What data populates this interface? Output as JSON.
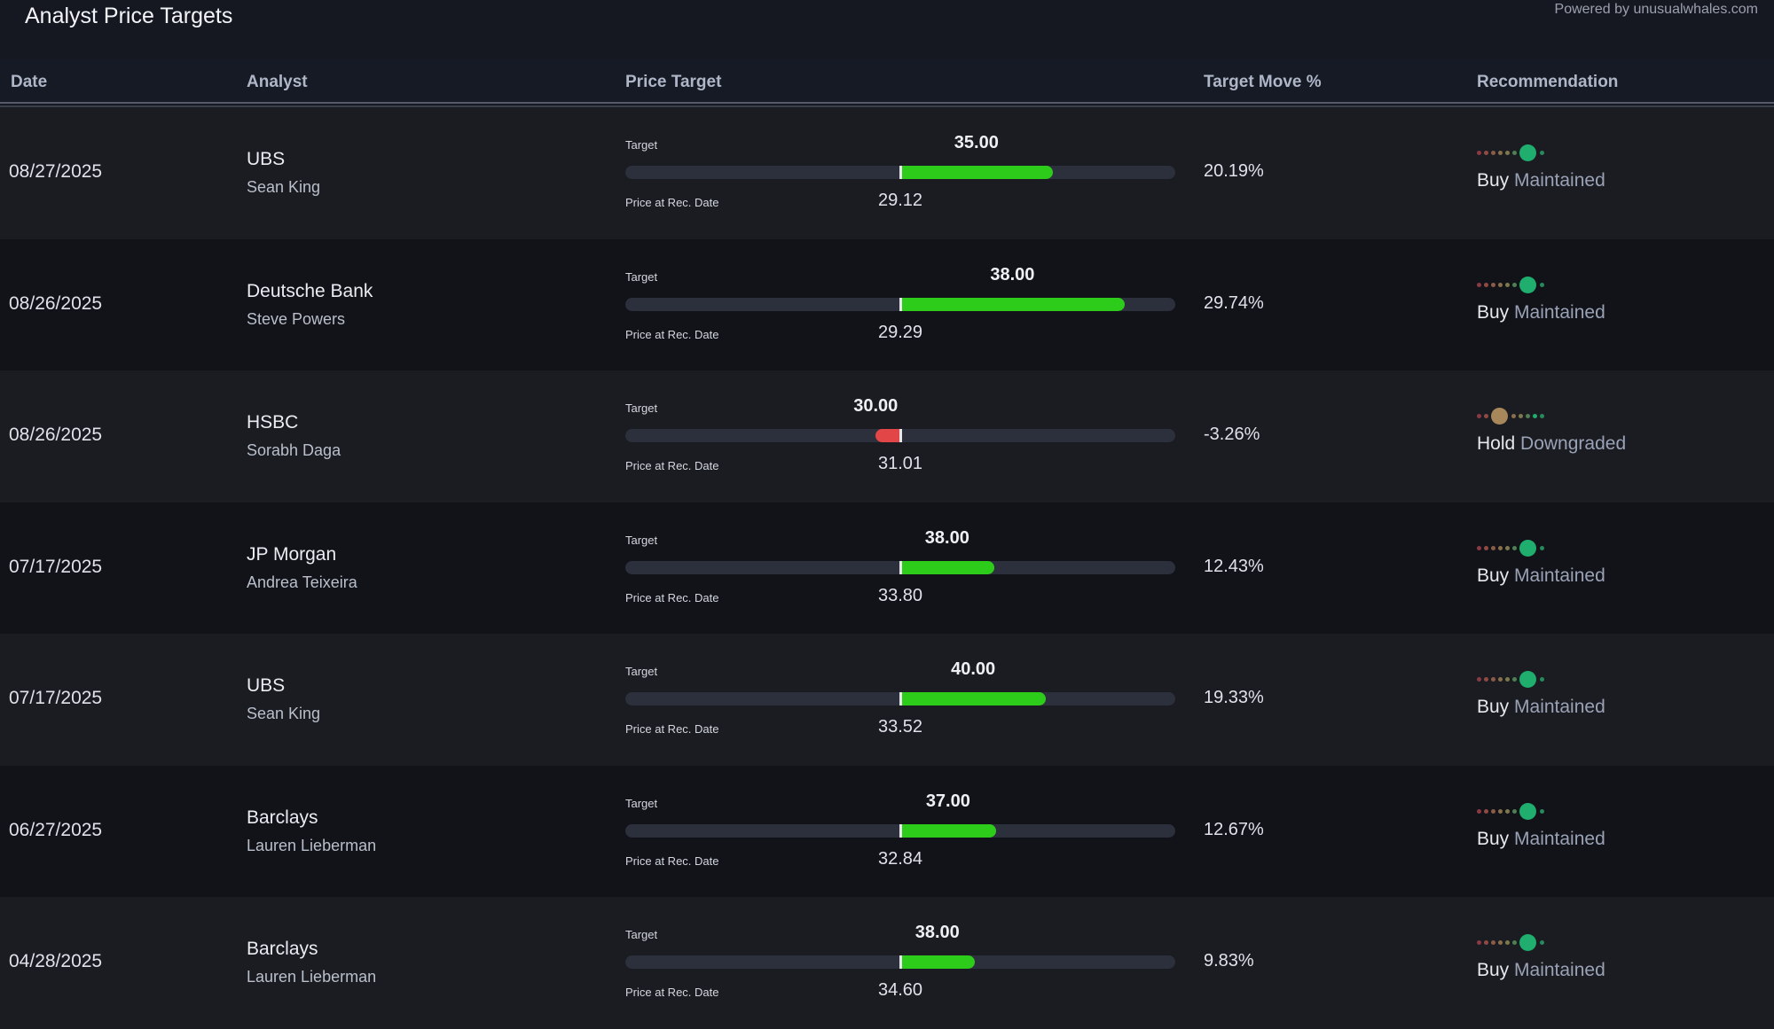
{
  "header": {
    "title": "Analyst Price Targets",
    "powered_by": "Powered by unusualwhales.com"
  },
  "columns": {
    "date": "Date",
    "analyst": "Analyst",
    "price_target": "Price Target",
    "target_move": "Target Move %",
    "recommendation": "Recommendation"
  },
  "labels": {
    "target": "Target",
    "price_at_rec": "Price at Rec. Date"
  },
  "colors": {
    "positive_fill": "#2ecc1a",
    "negative_fill": "#e24646",
    "buy_dot": "#1fae6e",
    "hold_dot": "#a8875a"
  },
  "rows": [
    {
      "date": "08/27/2025",
      "firm": "UBS",
      "analyst": "Sean King",
      "target": "35.00",
      "price_at_rec": "29.12",
      "target_move": "20.19%",
      "move_pct": 20.19,
      "recommendation": "Buy",
      "action": "Maintained",
      "rating_level": 6
    },
    {
      "date": "08/26/2025",
      "firm": "Deutsche Bank",
      "analyst": "Steve Powers",
      "target": "38.00",
      "price_at_rec": "29.29",
      "target_move": "29.74%",
      "move_pct": 29.74,
      "recommendation": "Buy",
      "action": "Maintained",
      "rating_level": 6
    },
    {
      "date": "08/26/2025",
      "firm": "HSBC",
      "analyst": "Sorabh Daga",
      "target": "30.00",
      "price_at_rec": "31.01",
      "target_move": "-3.26%",
      "move_pct": -3.26,
      "recommendation": "Hold",
      "action": "Downgraded",
      "rating_level": 2
    },
    {
      "date": "07/17/2025",
      "firm": "JP Morgan",
      "analyst": "Andrea Teixeira",
      "target": "38.00",
      "price_at_rec": "33.80",
      "target_move": "12.43%",
      "move_pct": 12.43,
      "recommendation": "Buy",
      "action": "Maintained",
      "rating_level": 6
    },
    {
      "date": "07/17/2025",
      "firm": "UBS",
      "analyst": "Sean King",
      "target": "40.00",
      "price_at_rec": "33.52",
      "target_move": "19.33%",
      "move_pct": 19.33,
      "recommendation": "Buy",
      "action": "Maintained",
      "rating_level": 6
    },
    {
      "date": "06/27/2025",
      "firm": "Barclays",
      "analyst": "Lauren Lieberman",
      "target": "37.00",
      "price_at_rec": "32.84",
      "target_move": "12.67%",
      "move_pct": 12.67,
      "recommendation": "Buy",
      "action": "Maintained",
      "rating_level": 6
    },
    {
      "date": "04/28/2025",
      "firm": "Barclays",
      "analyst": "Lauren Lieberman",
      "target": "38.00",
      "price_at_rec": "34.60",
      "target_move": "9.83%",
      "move_pct": 9.83,
      "recommendation": "Buy",
      "action": "Maintained",
      "rating_level": 6
    }
  ]
}
